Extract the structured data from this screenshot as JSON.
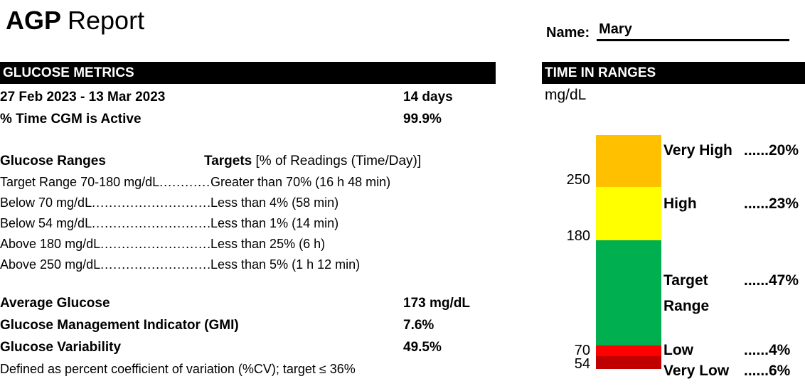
{
  "title": {
    "bold": "AGP",
    "rest": "Report"
  },
  "name_field": {
    "label": "Name:",
    "value": "Mary"
  },
  "glucose_metrics": {
    "header": "GLUCOSE METRICS",
    "rows": [
      {
        "label": "27 Feb 2023 - 13 Mar 2023",
        "value": "14 days"
      },
      {
        "label": "% Time CGM is Active",
        "value": "99.9%"
      }
    ],
    "ranges": {
      "col1_header": "Glucose Ranges",
      "col2_header_bold": "Targets",
      "col2_header_rest": " [% of Readings (Time/Day)]",
      "leader": "..........................................................................................",
      "lines": [
        {
          "label": "Target Range 70-180 mg/dL",
          "target": "Greater than 70% (16 h 48 min)"
        },
        {
          "label": "Below 70 mg/dL",
          "target": "Less than 4% (58 min)"
        },
        {
          "label": "Below 54 mg/dL",
          "target": "Less than 1% (14 min)"
        },
        {
          "label": "Above 180 mg/dL",
          "target": "Less than 25% (6 h)"
        },
        {
          "label": "Above 250 mg/dL",
          "target": "Less than 5% (1 h 12 min)"
        }
      ]
    },
    "stats": [
      {
        "label": "Average Glucose",
        "value": "173 mg/dL"
      },
      {
        "label": "Glucose Management Indicator (GMI)",
        "value": "7.6%"
      },
      {
        "label": "Glucose Variability",
        "value": "49.5%"
      }
    ],
    "footnote": "Defined as percent coefficient of variation (%CV); target ≤ 36%"
  },
  "time_in_ranges": {
    "header": "TIME IN RANGES",
    "unit": "mg/dL",
    "ticks": {
      "t250": "250",
      "t180": "180",
      "t70": "70",
      "t54": "54"
    },
    "labels": {
      "very_high": "Very High",
      "very_high_pct": "......20%",
      "high": "High",
      "high_pct": "......23%",
      "target_line1": "Target",
      "target_line2": "Range",
      "target_pct": "......47%",
      "low": "Low",
      "low_pct": "......4%",
      "very_low": "Very Low",
      "very_low_pct": "......6%"
    },
    "colors": {
      "very_high": "#FFC000",
      "high": "#FFFF00",
      "target": "#00B050",
      "low": "#FF0000",
      "very_low": "#C00000",
      "header_bg": "#000000",
      "header_text": "#FFFFFF"
    }
  },
  "chart_data": {
    "type": "bar",
    "title": "TIME IN RANGES",
    "ylabel": "mg/dL",
    "y_ticks": [
      250,
      180,
      70,
      54
    ],
    "legend_position": "right",
    "series": [
      {
        "name": "Very High",
        "value": 20,
        "unit": "%",
        "color": "#FFC000"
      },
      {
        "name": "High",
        "value": 23,
        "unit": "%",
        "color": "#FFFF00"
      },
      {
        "name": "Target Range",
        "value": 47,
        "unit": "%",
        "color": "#00B050"
      },
      {
        "name": "Low",
        "value": 4,
        "unit": "%",
        "color": "#FF0000"
      },
      {
        "name": "Very Low",
        "value": 6,
        "unit": "%",
        "color": "#C00000"
      }
    ]
  }
}
